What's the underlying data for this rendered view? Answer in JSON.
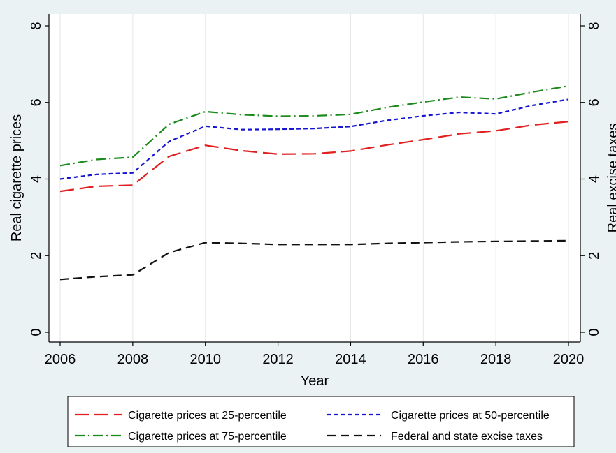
{
  "chart_data": {
    "type": "line",
    "xlabel": "Year",
    "ylabel": "Real cigarette prices",
    "y2label": "Real excise taxes",
    "xlim": [
      2006,
      2020
    ],
    "ylim": [
      0,
      8
    ],
    "x_ticks": [
      2006,
      2008,
      2010,
      2012,
      2014,
      2016,
      2018,
      2020
    ],
    "y_ticks": [
      0,
      2,
      4,
      6,
      8
    ],
    "grid": "vertical gridlines only",
    "legend_position": "bottom",
    "x": [
      2006,
      2007,
      2008,
      2009,
      2010,
      2011,
      2012,
      2013,
      2014,
      2015,
      2016,
      2017,
      2018,
      2019,
      2020
    ],
    "series": [
      {
        "name": "Cigarette prices at 25-percentile",
        "color": "#e02020",
        "dash": "long-dash",
        "values": [
          3.68,
          3.81,
          3.84,
          4.59,
          4.88,
          4.74,
          4.65,
          4.66,
          4.73,
          4.89,
          5.03,
          5.18,
          5.26,
          5.41,
          5.5
        ]
      },
      {
        "name": "Cigarette prices at 50-percentile",
        "color": "#1515d0",
        "dash": "short-dash",
        "values": [
          4.0,
          4.12,
          4.16,
          4.98,
          5.38,
          5.29,
          5.3,
          5.32,
          5.37,
          5.53,
          5.65,
          5.74,
          5.7,
          5.92,
          6.08
        ]
      },
      {
        "name": "Cigarette prices at 75-percentile",
        "color": "#1a8a1a",
        "dash": "dash-dot",
        "values": [
          4.35,
          4.51,
          4.57,
          5.43,
          5.76,
          5.68,
          5.64,
          5.65,
          5.69,
          5.87,
          6.01,
          6.14,
          6.09,
          6.27,
          6.43
        ]
      },
      {
        "name": "Federal and state excise taxes",
        "color": "#111111",
        "dash": "medium-dash",
        "values": [
          1.38,
          1.45,
          1.5,
          2.08,
          2.34,
          2.32,
          2.29,
          2.29,
          2.29,
          2.32,
          2.34,
          2.36,
          2.37,
          2.38,
          2.39
        ]
      }
    ]
  }
}
